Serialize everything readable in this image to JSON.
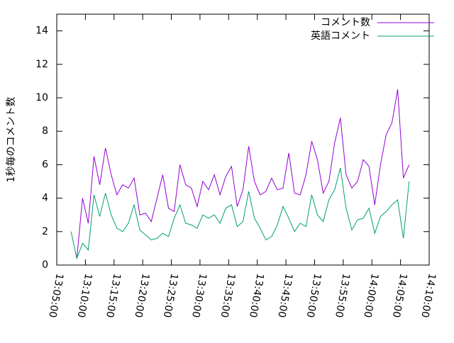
{
  "chart_data": {
    "type": "line",
    "y_label": "1秒毎のコメント数",
    "x": [
      "13:07:30",
      "13:08:30",
      "13:09:30",
      "13:10:30",
      "13:11:30",
      "13:12:30",
      "13:13:30",
      "13:14:30",
      "13:15:30",
      "13:16:30",
      "13:17:30",
      "13:18:30",
      "13:19:30",
      "13:20:30",
      "13:21:30",
      "13:22:30",
      "13:23:30",
      "13:24:30",
      "13:25:30",
      "13:26:30",
      "13:27:30",
      "13:28:30",
      "13:29:30",
      "13:30:30",
      "13:31:30",
      "13:32:30",
      "13:33:30",
      "13:34:30",
      "13:35:30",
      "13:36:30",
      "13:37:30",
      "13:38:30",
      "13:39:30",
      "13:40:30",
      "13:41:30",
      "13:42:30",
      "13:43:30",
      "13:44:30",
      "13:45:30",
      "13:46:30",
      "13:47:30",
      "13:48:30",
      "13:49:30",
      "13:50:30",
      "13:51:30",
      "13:52:30",
      "13:53:30",
      "13:54:30",
      "13:55:30",
      "13:56:30",
      "13:57:30",
      "13:58:30",
      "13:59:30",
      "14:00:30",
      "14:01:30",
      "14:02:30",
      "14:03:30",
      "14:04:30",
      "14:05:30",
      "14:06:30"
    ],
    "series": [
      {
        "name": "コメント数",
        "color": "#9400d3",
        "values": [
          null,
          0.4,
          4.0,
          2.5,
          6.5,
          4.8,
          7.0,
          5.4,
          4.2,
          4.8,
          4.6,
          5.2,
          3.0,
          3.1,
          2.6,
          4.0,
          5.4,
          3.4,
          3.2,
          6.0,
          4.8,
          4.6,
          3.5,
          5.0,
          4.5,
          5.4,
          4.2,
          5.3,
          5.9,
          3.5,
          4.5,
          7.1,
          5.0,
          4.2,
          4.4,
          5.2,
          4.5,
          4.6,
          6.7,
          4.3,
          4.2,
          5.4,
          7.4,
          6.3,
          4.3,
          5.0,
          7.3,
          8.8,
          5.4,
          4.6,
          5.0,
          6.3,
          5.9,
          3.6,
          6.0,
          7.8,
          8.5,
          10.5,
          5.2,
          6.0
        ]
      },
      {
        "name": "英語コメント",
        "color": "#009e73",
        "values": [
          2.0,
          0.4,
          1.3,
          0.9,
          4.2,
          2.9,
          4.3,
          3.0,
          2.2,
          2.0,
          2.5,
          3.6,
          2.1,
          1.8,
          1.5,
          1.6,
          1.9,
          1.7,
          2.8,
          3.6,
          2.5,
          2.4,
          2.2,
          3.0,
          2.8,
          3.0,
          2.5,
          3.4,
          3.6,
          2.3,
          2.6,
          4.4,
          2.8,
          2.2,
          1.5,
          1.7,
          2.4,
          3.5,
          2.8,
          2.0,
          2.5,
          2.3,
          4.2,
          3.0,
          2.6,
          3.9,
          4.5,
          5.8,
          3.4,
          2.1,
          2.7,
          2.8,
          3.4,
          1.9,
          2.9,
          3.2,
          3.6,
          3.9,
          1.6,
          5.0
        ]
      }
    ],
    "xlim": [
      "13:05:00",
      "14:10:00"
    ],
    "xticks": [
      "13:05:00",
      "13:10:00",
      "13:15:00",
      "13:20:00",
      "13:25:00",
      "13:30:00",
      "13:35:00",
      "13:40:00",
      "13:45:00",
      "13:50:00",
      "13:55:00",
      "14:00:00",
      "14:05:00",
      "14:10:00"
    ],
    "ylim": [
      0,
      15
    ],
    "yticks": [
      0,
      2,
      4,
      6,
      8,
      10,
      12,
      14
    ],
    "legend": "top-right"
  }
}
